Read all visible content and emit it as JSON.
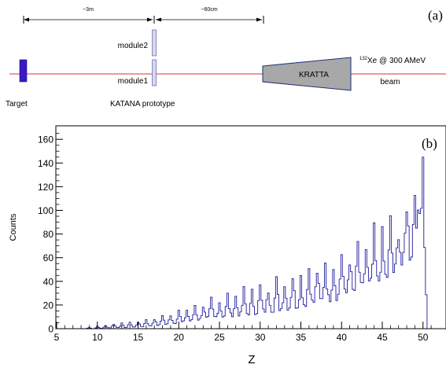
{
  "panel_a": {
    "panel_label": "(a)",
    "dim_left": "~3m",
    "dim_right": "~60cm",
    "module2_label": "module2",
    "module1_label": "module1",
    "target_label": "Target",
    "katana_label": "KATANA prototype",
    "kratta_label": "KRATTA",
    "beam_isotope_mass": "132",
    "beam_text": "Xe @ 300 AMeV",
    "beam_label": "beam",
    "colors": {
      "target": "#3a18c8",
      "beam_line": "#e03030",
      "kratta_fill": "#a8a8a8",
      "kratta_stroke": "#1d2d7a",
      "module": "#d8d8f0"
    }
  },
  "chart_data": {
    "type": "step-histogram",
    "panel_label": "(b)",
    "xlabel": "Z",
    "ylabel": "Counts",
    "xlim": [
      5,
      51
    ],
    "ylim": [
      0,
      165
    ],
    "x_ticks": [
      5,
      10,
      15,
      20,
      25,
      30,
      35,
      40,
      45,
      50
    ],
    "y_ticks": [
      0,
      20,
      40,
      60,
      80,
      100,
      120,
      140,
      160
    ],
    "line_color": "#1c1c9c",
    "bin_width": 0.2,
    "envelope": {
      "z": [
        8.5,
        10,
        12,
        14,
        16,
        18,
        20,
        22,
        24,
        26,
        28,
        30,
        32,
        34,
        36,
        38,
        40,
        42,
        44,
        46,
        47,
        48,
        49,
        49.6,
        50,
        50.3,
        50.6
      ],
      "peak": [
        1,
        2,
        4,
        6,
        8,
        12,
        16,
        20,
        24,
        28,
        32,
        35,
        40,
        45,
        52,
        58,
        65,
        70,
        78,
        88,
        95,
        110,
        130,
        160,
        150,
        80,
        0
      ],
      "base": [
        0,
        0,
        1,
        1,
        2,
        3,
        5,
        7,
        9,
        11,
        12,
        14,
        16,
        18,
        21,
        24,
        28,
        32,
        38,
        45,
        50,
        58,
        70,
        95,
        90,
        40,
        0
      ]
    }
  }
}
